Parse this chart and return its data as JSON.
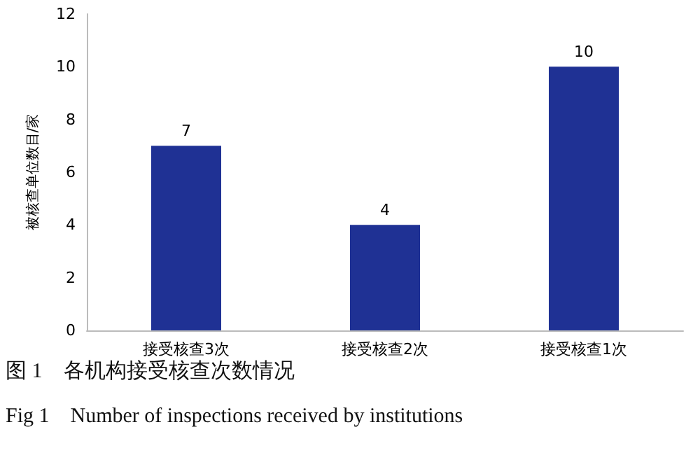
{
  "chart_data": {
    "type": "bar",
    "ylabel": "被核查单位数目/家",
    "categories": [
      "接受核查3次",
      "接受核查2次",
      "接受核查1次"
    ],
    "values": [
      7,
      4,
      10
    ],
    "color": "#1f3194",
    "ylim": [
      0,
      12
    ],
    "yticks": [
      0,
      2,
      4,
      6,
      8,
      10,
      12
    ],
    "grid": false,
    "data_labels": true,
    "annotations": [
      "图 1　各机构接受核查次数情况",
      "Fig 1　Number of inspections received by institutions"
    ]
  }
}
